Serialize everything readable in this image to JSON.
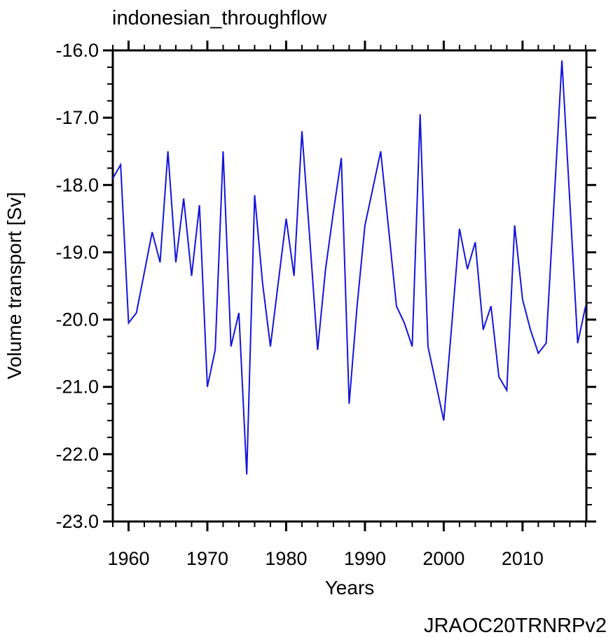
{
  "chart_data": {
    "type": "line",
    "title": "indonesian_throughflow",
    "xlabel": "Years",
    "ylabel": "Volume transport [Sv]",
    "xlim": [
      1958,
      2018.1
    ],
    "ylim": [
      -23.0,
      -16.0
    ],
    "grid": false,
    "legend_position": "none",
    "line_color": "#1414DC",
    "x_major_ticks": [
      1960,
      1970,
      1980,
      1990,
      2000,
      2010
    ],
    "x_tick_labels": [
      "1960",
      "1970",
      "1980",
      "1990",
      "2000",
      "2010"
    ],
    "x_minor_step": 2,
    "y_major_ticks": [
      -16.0,
      -17.0,
      -18.0,
      -19.0,
      -20.0,
      -21.0,
      -22.0,
      -23.0
    ],
    "y_tick_labels": [
      "-16.0",
      "-17.0",
      "-18.0",
      "-19.0",
      "-20.0",
      "-21.0",
      "-22.0",
      "-23.0"
    ],
    "y_minor_step": 0.25,
    "years": [
      1958,
      1959,
      1960,
      1961,
      1962,
      1963,
      1964,
      1965,
      1966,
      1967,
      1968,
      1969,
      1970,
      1971,
      1972,
      1973,
      1974,
      1975,
      1976,
      1977,
      1978,
      1979,
      1980,
      1981,
      1982,
      1983,
      1984,
      1985,
      1986,
      1987,
      1988,
      1989,
      1990,
      1991,
      1992,
      1993,
      1994,
      1995,
      1996,
      1997,
      1998,
      1999,
      2000,
      2001,
      2002,
      2003,
      2004,
      2005,
      2006,
      2007,
      2008,
      2009,
      2010,
      2011,
      2012,
      2013,
      2014,
      2015,
      2016,
      2017,
      2018
    ],
    "series": [
      {
        "name": "JRAOC20TRNRPv2",
        "values": [
          -17.9,
          -17.7,
          -20.05,
          -19.9,
          -19.3,
          -18.7,
          -19.15,
          -17.5,
          -19.15,
          -18.2,
          -19.35,
          -18.3,
          -21.0,
          -20.45,
          -17.5,
          -20.4,
          -19.9,
          -22.3,
          -18.15,
          -19.45,
          -20.4,
          -19.45,
          -18.5,
          -19.35,
          -17.2,
          -18.8,
          -20.45,
          -19.25,
          -18.4,
          -17.6,
          -21.25,
          -19.8,
          -18.6,
          -18.05,
          -17.5,
          -18.65,
          -19.8,
          -20.05,
          -20.4,
          -16.95,
          -20.4,
          -20.95,
          -21.5,
          -20.1,
          -18.65,
          -19.25,
          -18.85,
          -20.15,
          -19.8,
          -20.85,
          -21.05,
          -18.6,
          -19.7,
          -20.15,
          -20.5,
          -20.35,
          -18.25,
          -16.15,
          -18.25,
          -20.35,
          -19.8
        ]
      }
    ]
  },
  "annotation": {
    "label": "JRAOC20TRNRPv2",
    "color": "#1414DC"
  },
  "style": {
    "axis_color": "#000000",
    "background": "#ffffff"
  }
}
